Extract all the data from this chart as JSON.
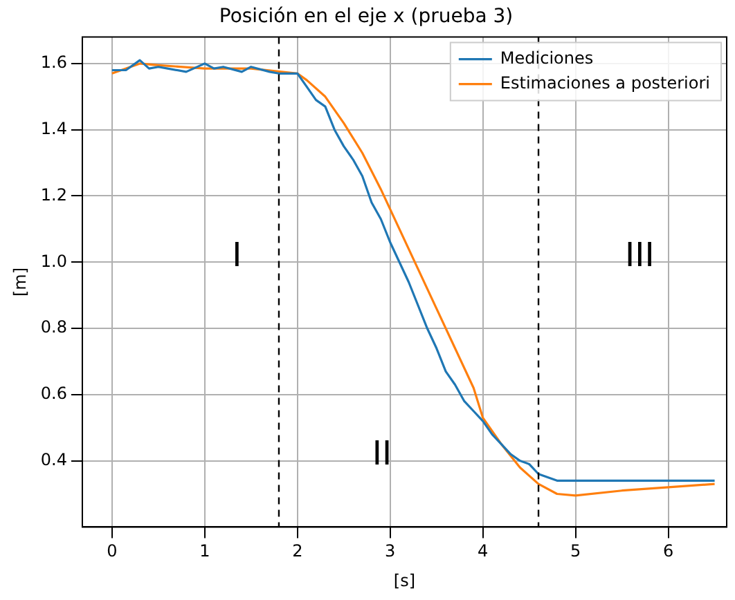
{
  "chart_data": {
    "type": "line",
    "title": "Posición en el eje x (prueba 3)",
    "xlabel": "[s]",
    "ylabel": "[m]",
    "xlim": [
      -0.32,
      6.63
    ],
    "ylim": [
      0.2,
      1.68
    ],
    "xticks": [
      0,
      1,
      2,
      3,
      4,
      5,
      6
    ],
    "yticks": [
      0.4,
      0.6,
      0.8,
      {
        "value": 1,
        "label": "1.0"
      },
      1.2,
      1.4,
      1.6
    ],
    "grid": true,
    "legend": "top right",
    "marker": "none",
    "line_style": "solid",
    "series": [
      {
        "name": "Mediciones",
        "color": "#1f77b4",
        "x": [
          0,
          0.15,
          0.3,
          0.4,
          0.5,
          0.6,
          0.8,
          1.0,
          1.1,
          1.2,
          1.4,
          1.5,
          1.7,
          1.8,
          2.0,
          2.1,
          2.2,
          2.3,
          2.4,
          2.5,
          2.6,
          2.7,
          2.8,
          2.9,
          3.0,
          3.1,
          3.2,
          3.3,
          3.4,
          3.5,
          3.6,
          3.7,
          3.8,
          3.9,
          4.0,
          4.1,
          4.2,
          4.3,
          4.4,
          4.5,
          4.6,
          4.8,
          6.5
        ],
        "values": [
          1.58,
          1.58,
          1.61,
          1.585,
          1.59,
          1.585,
          1.575,
          1.6,
          1.585,
          1.59,
          1.575,
          1.59,
          1.575,
          1.57,
          1.57,
          1.53,
          1.49,
          1.47,
          1.4,
          1.35,
          1.31,
          1.26,
          1.18,
          1.13,
          1.06,
          1.0,
          0.94,
          0.87,
          0.8,
          0.74,
          0.67,
          0.63,
          0.58,
          0.55,
          0.52,
          0.48,
          0.45,
          0.42,
          0.4,
          0.39,
          0.36,
          0.34,
          0.34
        ]
      },
      {
        "name": "Estimaciones a posteriori",
        "color": "#ff7f0e",
        "x": [
          0,
          0.3,
          0.5,
          1.0,
          1.5,
          2.0,
          2.1,
          2.3,
          2.5,
          2.7,
          2.9,
          3.1,
          3.3,
          3.5,
          3.7,
          3.9,
          4.0,
          4.2,
          4.4,
          4.6,
          4.8,
          5.0,
          5.5,
          6.0,
          6.5
        ],
        "values": [
          1.57,
          1.6,
          1.595,
          1.585,
          1.585,
          1.57,
          1.55,
          1.5,
          1.42,
          1.33,
          1.22,
          1.1,
          0.98,
          0.86,
          0.74,
          0.62,
          0.53,
          0.45,
          0.38,
          0.33,
          0.3,
          0.295,
          0.31,
          0.32,
          0.33
        ]
      }
    ],
    "ref_lines": [
      {
        "axis": "x",
        "value": 1.8,
        "color": "#000000",
        "line_style": "dashed"
      },
      {
        "axis": "x",
        "value": 4.6,
        "color": "#000000",
        "line_style": "dashed"
      }
    ],
    "annotations": [
      "I",
      "II",
      "III"
    ]
  }
}
